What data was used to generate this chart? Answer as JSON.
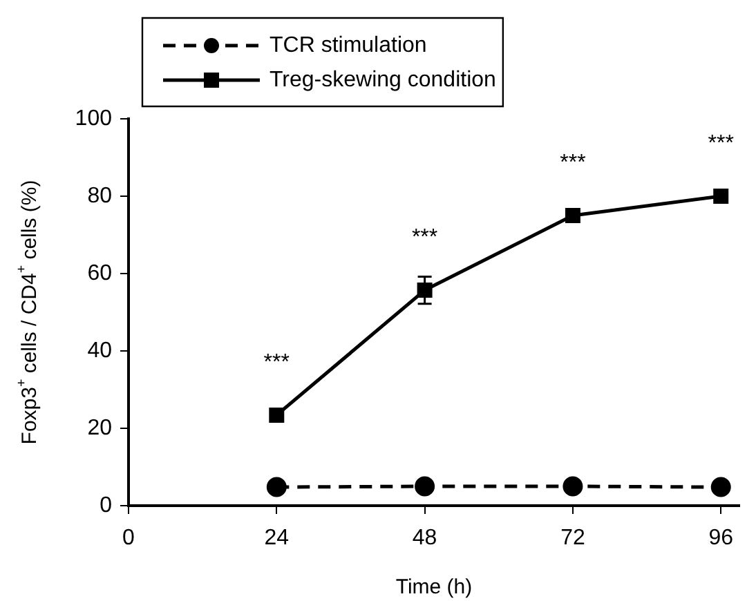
{
  "chart_data": {
    "type": "line",
    "xlabel": "Time (h)",
    "ylabel": "Foxp3$^{+}$ cells / CD4$^{+}$ cells (%)",
    "x": [
      24,
      48,
      72,
      96
    ],
    "xlim": [
      0,
      99
    ],
    "xticks": [
      0,
      24,
      48,
      72,
      96
    ],
    "ylim": [
      0,
      100
    ],
    "yticks": [
      0,
      20,
      40,
      60,
      80,
      100
    ],
    "grid": false,
    "legend": "top left",
    "series": [
      {
        "name": "TCR stimulation",
        "color": "#000000",
        "values": [
          4.8,
          5,
          5,
          4.8
        ],
        "marker": "circle",
        "line_style": "dashed"
      },
      {
        "name": "Treg-skewing condition",
        "color": "#000000",
        "values": [
          23.4,
          55.7,
          75,
          80
        ],
        "errors": [
          null,
          3.5,
          null,
          null
        ],
        "marker": "square",
        "line_style": "solid"
      }
    ],
    "annotations": [
      {
        "text": "***",
        "x": 24,
        "y": 23.4
      },
      {
        "text": "***",
        "x": 48,
        "y": 55.7
      },
      {
        "text": "***",
        "x": 72,
        "y": 75
      },
      {
        "text": "***",
        "x": 96,
        "y": 80
      }
    ]
  }
}
